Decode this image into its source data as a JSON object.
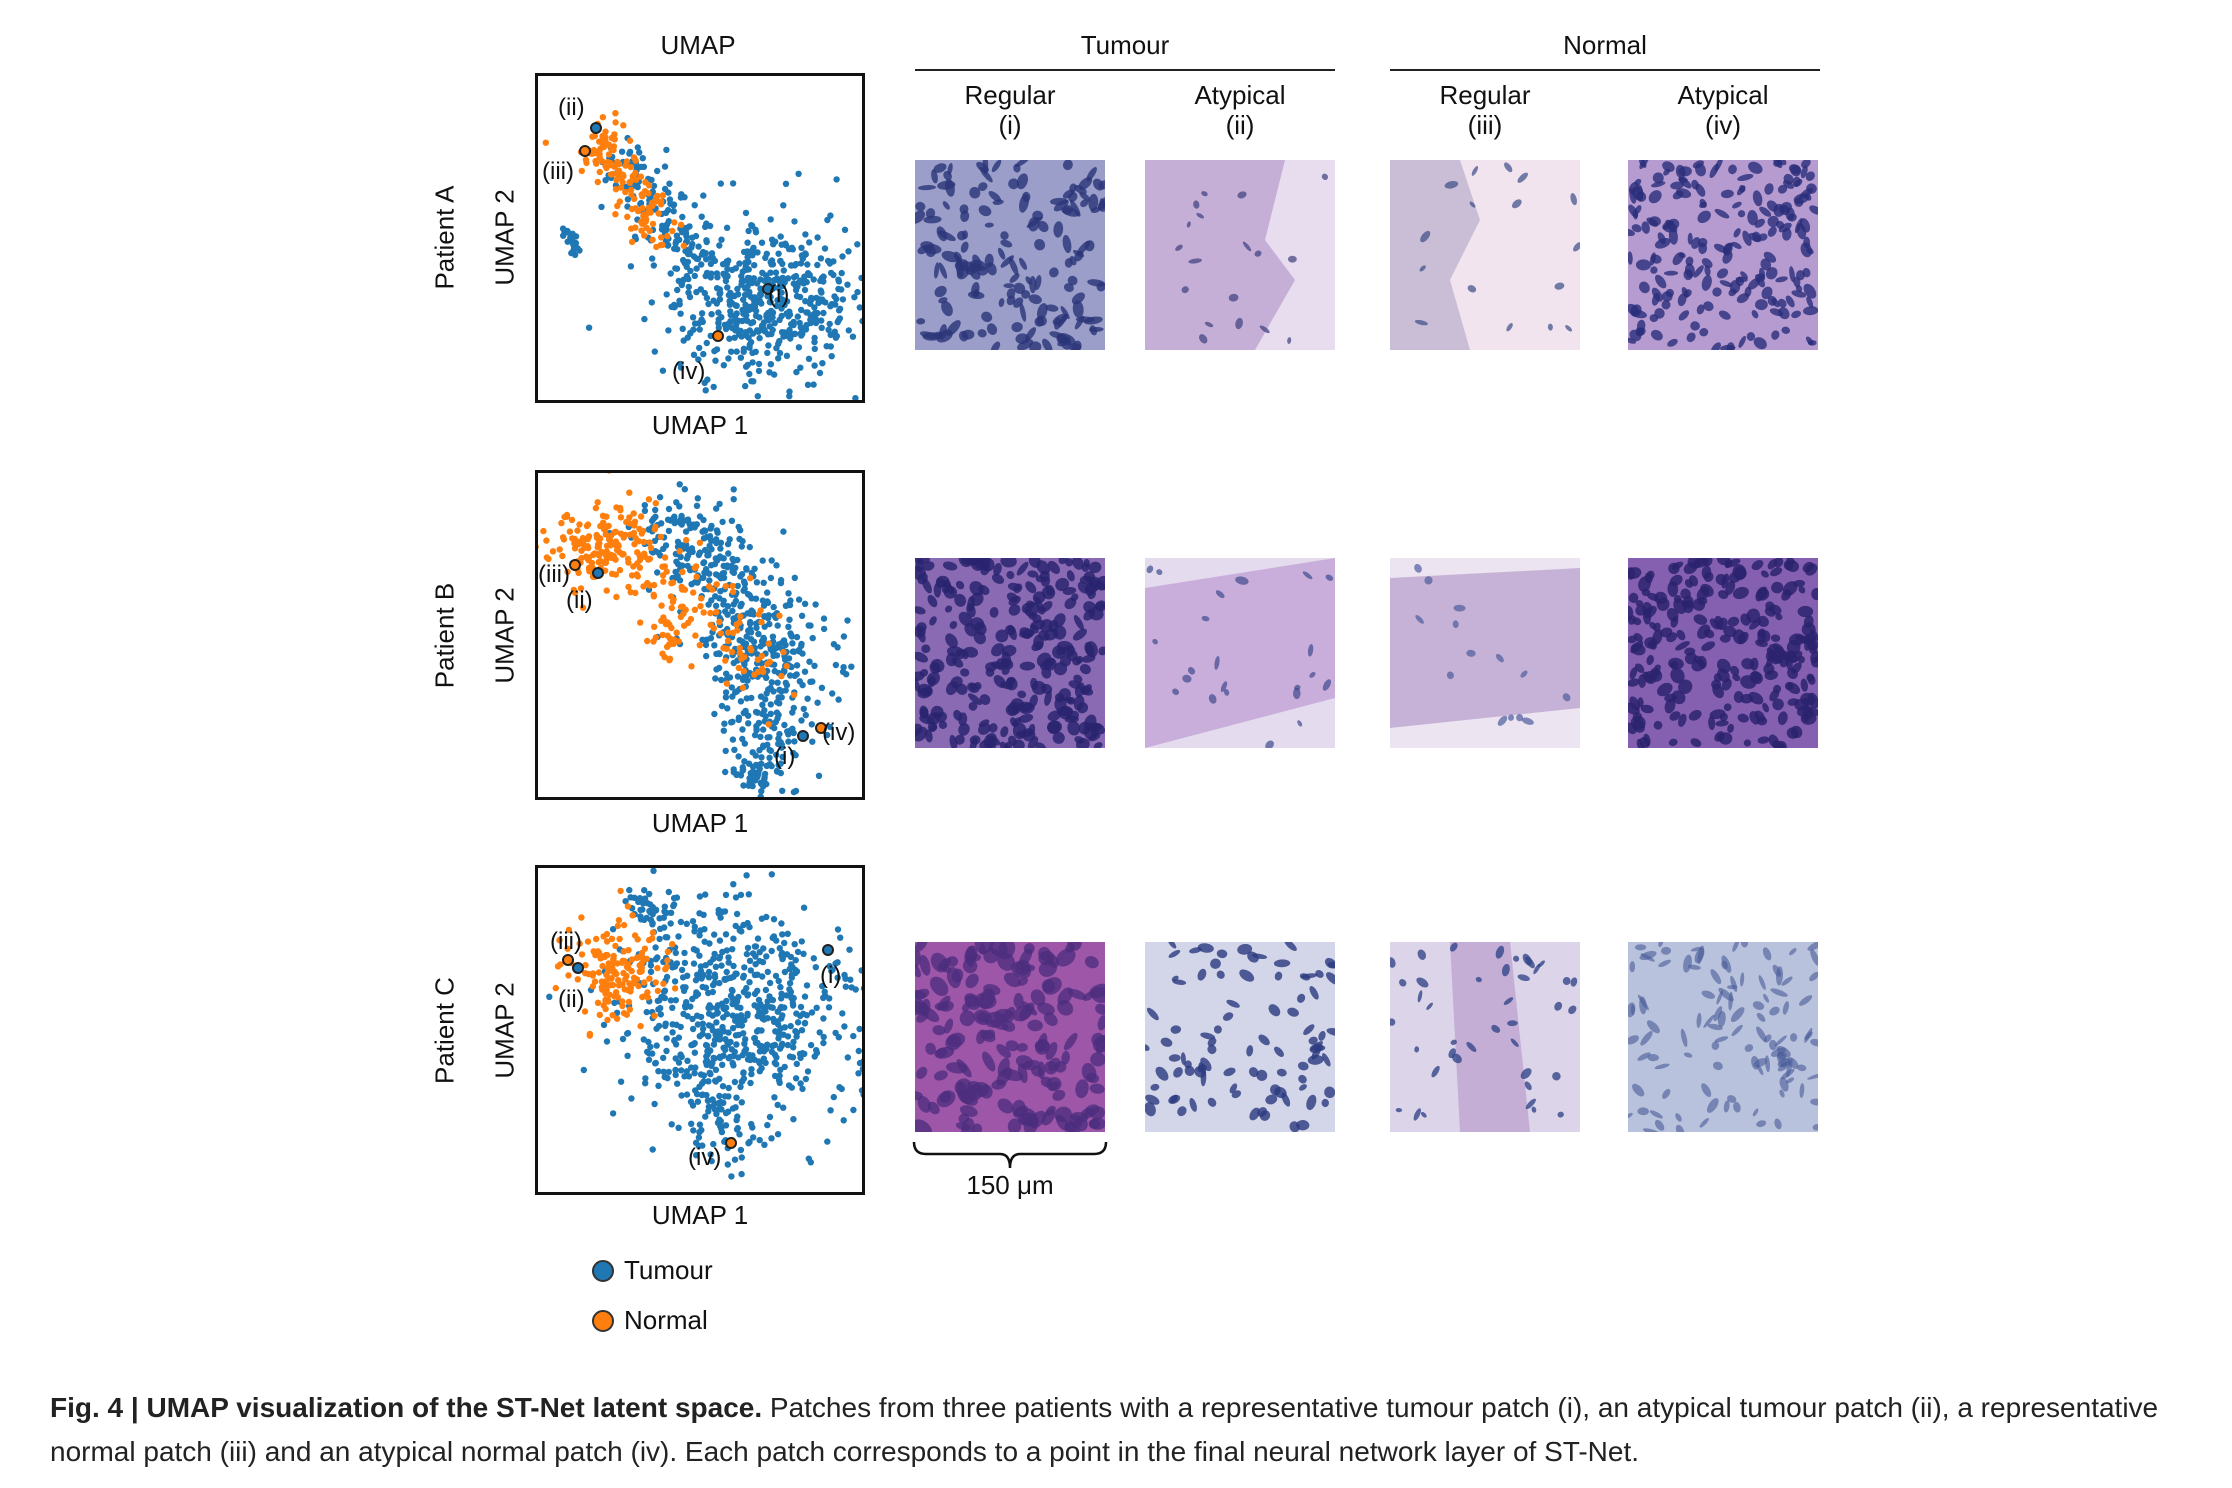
{
  "figure": {
    "umap_header": "UMAP",
    "group_headers": {
      "tumour": "Tumour",
      "normal": "Normal"
    },
    "columns": [
      {
        "title": "Regular",
        "tag": "(i)"
      },
      {
        "title": "Atypical",
        "tag": "(ii)"
      },
      {
        "title": "Regular",
        "tag": "(iii)"
      },
      {
        "title": "Atypical",
        "tag": "(iv)"
      }
    ],
    "axis_x": "UMAP 1",
    "axis_y": "UMAP 2",
    "rows": [
      {
        "patient": "Patient A",
        "tags": [
          "(ii)",
          "(iii)",
          "(i)",
          "(iv)"
        ]
      },
      {
        "patient": "Patient B",
        "tags": [
          "(iii)",
          "(ii)",
          "(iv)",
          "(i)"
        ]
      },
      {
        "patient": "Patient C",
        "tags": [
          "(iii)",
          "(ii)",
          "(i)",
          "(iv)"
        ]
      }
    ],
    "scale_bar": "150 μm",
    "legend": [
      {
        "label": "Tumour",
        "color": "#1f77b4"
      },
      {
        "label": "Normal",
        "color": "#ff7f0e"
      }
    ]
  },
  "caption": {
    "label": "Fig. 4 | UMAP visualization of the ST-Net latent space.",
    "text": " Patches from three patients with a representative tumour patch (i), an atypical tumour patch (ii), a representative normal patch (iii) and an atypical normal patch (iv). Each patch corresponds to a point in the final neural network layer of ST-Net."
  },
  "colors": {
    "tumour": "#1f77b4",
    "normal": "#ff7f0e",
    "highlight_stroke": "#222222"
  }
}
